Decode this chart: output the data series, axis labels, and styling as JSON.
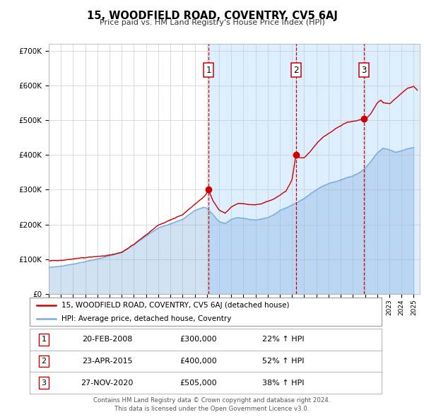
{
  "title": "15, WOODFIELD ROAD, COVENTRY, CV5 6AJ",
  "subtitle": "Price paid vs. HM Land Registry's House Price Index (HPI)",
  "legend_line1": "15, WOODFIELD ROAD, COVENTRY, CV5 6AJ (detached house)",
  "legend_line2": "HPI: Average price, detached house, Coventry",
  "footer1": "Contains HM Land Registry data © Crown copyright and database right 2024.",
  "footer2": "This data is licensed under the Open Government Licence v3.0.",
  "transactions": [
    {
      "num": 1,
      "date": "20-FEB-2008",
      "price": 300000,
      "hpi_pct": "22%",
      "x_year": 2008.13
    },
    {
      "num": 2,
      "date": "23-APR-2015",
      "price": 400000,
      "hpi_pct": "52%",
      "x_year": 2015.31
    },
    {
      "num": 3,
      "date": "27-NOV-2020",
      "price": 505000,
      "hpi_pct": "38%",
      "x_year": 2020.9
    }
  ],
  "red_color": "#cc0000",
  "blue_color": "#7aacdc",
  "shade_color": "#ddeeff",
  "bg_color": "#ffffff",
  "grid_color": "#cccccc",
  "vline_color": "#cc0000",
  "ylim": [
    0,
    720000
  ],
  "xlim_start": 1995.0,
  "xlim_end": 2025.5,
  "hpi_anchors": [
    [
      1995.0,
      77000
    ],
    [
      1996.0,
      80000
    ],
    [
      1997.0,
      86000
    ],
    [
      1998.0,
      93000
    ],
    [
      1999.0,
      101000
    ],
    [
      2000.0,
      110000
    ],
    [
      2001.0,
      120000
    ],
    [
      2002.0,
      142000
    ],
    [
      2003.0,
      167000
    ],
    [
      2004.0,
      190000
    ],
    [
      2005.0,
      202000
    ],
    [
      2006.0,
      215000
    ],
    [
      2007.0,
      240000
    ],
    [
      2007.75,
      250000
    ],
    [
      2008.0,
      247000
    ],
    [
      2008.5,
      228000
    ],
    [
      2009.0,
      208000
    ],
    [
      2009.5,
      203000
    ],
    [
      2010.0,
      215000
    ],
    [
      2010.5,
      220000
    ],
    [
      2011.0,
      218000
    ],
    [
      2011.5,
      215000
    ],
    [
      2012.0,
      213000
    ],
    [
      2012.5,
      216000
    ],
    [
      2013.0,
      220000
    ],
    [
      2013.5,
      228000
    ],
    [
      2014.0,
      240000
    ],
    [
      2014.5,
      248000
    ],
    [
      2015.0,
      256000
    ],
    [
      2015.5,
      265000
    ],
    [
      2016.0,
      275000
    ],
    [
      2016.5,
      288000
    ],
    [
      2017.0,
      300000
    ],
    [
      2017.5,
      310000
    ],
    [
      2018.0,
      318000
    ],
    [
      2018.5,
      323000
    ],
    [
      2019.0,
      328000
    ],
    [
      2019.5,
      335000
    ],
    [
      2020.0,
      340000
    ],
    [
      2020.5,
      348000
    ],
    [
      2021.0,
      362000
    ],
    [
      2021.5,
      382000
    ],
    [
      2022.0,
      406000
    ],
    [
      2022.5,
      420000
    ],
    [
      2023.0,
      415000
    ],
    [
      2023.5,
      408000
    ],
    [
      2024.0,
      412000
    ],
    [
      2024.5,
      418000
    ],
    [
      2025.0,
      422000
    ]
  ],
  "red_anchors": [
    [
      1995.0,
      95000
    ],
    [
      1996.0,
      97000
    ],
    [
      1997.0,
      101000
    ],
    [
      1998.0,
      105000
    ],
    [
      1999.0,
      108000
    ],
    [
      2000.0,
      112000
    ],
    [
      2001.0,
      120000
    ],
    [
      2002.0,
      143000
    ],
    [
      2003.0,
      170000
    ],
    [
      2004.0,
      198000
    ],
    [
      2005.0,
      213000
    ],
    [
      2006.0,
      228000
    ],
    [
      2007.0,
      258000
    ],
    [
      2007.5,
      272000
    ],
    [
      2007.9,
      285000
    ],
    [
      2008.13,
      300000
    ],
    [
      2008.5,
      268000
    ],
    [
      2009.0,
      242000
    ],
    [
      2009.5,
      233000
    ],
    [
      2010.0,
      250000
    ],
    [
      2010.5,
      260000
    ],
    [
      2011.0,
      260000
    ],
    [
      2011.5,
      257000
    ],
    [
      2012.0,
      257000
    ],
    [
      2012.5,
      260000
    ],
    [
      2013.0,
      267000
    ],
    [
      2013.5,
      274000
    ],
    [
      2014.0,
      284000
    ],
    [
      2014.5,
      296000
    ],
    [
      2015.0,
      328000
    ],
    [
      2015.31,
      400000
    ],
    [
      2015.6,
      392000
    ],
    [
      2016.0,
      392000
    ],
    [
      2016.5,
      410000
    ],
    [
      2017.0,
      432000
    ],
    [
      2017.5,
      450000
    ],
    [
      2018.0,
      462000
    ],
    [
      2018.5,
      474000
    ],
    [
      2019.0,
      484000
    ],
    [
      2019.5,
      494000
    ],
    [
      2020.0,
      497000
    ],
    [
      2020.5,
      500000
    ],
    [
      2020.9,
      505000
    ],
    [
      2021.0,
      502000
    ],
    [
      2021.5,
      520000
    ],
    [
      2022.0,
      550000
    ],
    [
      2022.3,
      558000
    ],
    [
      2022.5,
      550000
    ],
    [
      2023.0,
      547000
    ],
    [
      2023.5,
      562000
    ],
    [
      2024.0,
      578000
    ],
    [
      2024.5,
      592000
    ],
    [
      2025.0,
      597000
    ],
    [
      2025.3,
      587000
    ]
  ]
}
